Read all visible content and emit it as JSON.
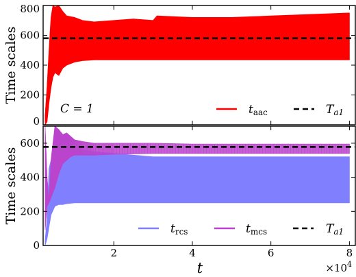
{
  "chart_data": [
    {
      "type": "line",
      "ylabel": "Time scales",
      "xlim": [
        2000,
        81500
      ],
      "ylim": [
        0,
        800
      ],
      "yticks": [
        0,
        200,
        400,
        600,
        800
      ],
      "annotation": "C = 1",
      "legend_position": "bottom-right",
      "hline": {
        "name": "T_a1",
        "label_main": "T",
        "label_sub": "a1",
        "value": 580,
        "color": "#000000",
        "style": "dashed"
      },
      "series": [
        {
          "name": "t_aac",
          "label_main": "t",
          "label_sub": "aac",
          "color": "#ff0000",
          "x": [
            2500,
            3000,
            3500,
            4000,
            4500,
            5000,
            6000,
            7000,
            8000,
            10000,
            12000,
            15000,
            20000,
            25000,
            30000,
            31000,
            40000,
            50000,
            60000,
            70000,
            80000
          ],
          "upper": [
            60,
            250,
            500,
            720,
            800,
            790,
            800,
            760,
            730,
            720,
            700,
            690,
            700,
            710,
            700,
            730,
            720,
            720,
            730,
            740,
            750
          ],
          "lower": [
            0,
            20,
            150,
            250,
            320,
            350,
            330,
            380,
            400,
            420,
            430,
            435,
            435,
            435,
            435,
            435,
            435,
            435,
            435,
            435,
            435
          ]
        }
      ]
    },
    {
      "type": "line",
      "ylabel": "Time scales",
      "xlabel": "t",
      "xlim": [
        2000,
        81500
      ],
      "ylim": [
        0,
        700
      ],
      "yticks": [
        0,
        200,
        400,
        600
      ],
      "xticks": [
        20000,
        40000,
        60000,
        80000
      ],
      "xtick_labels": [
        "2",
        "4",
        "6",
        "8"
      ],
      "x_multiplier": "×10",
      "x_multiplier_exp": "4",
      "legend_position": "bottom",
      "hline": {
        "name": "T_a1",
        "label_main": "T",
        "label_sub": "a1",
        "value": 578,
        "color": "#000000",
        "style": "dashed"
      },
      "series": [
        {
          "name": "t_rcs",
          "label_main": "t",
          "label_sub": "rcs",
          "color": "#8080ff",
          "x": [
            2500,
            3000,
            3500,
            4000,
            5000,
            6000,
            7000,
            8000,
            10000,
            12000,
            15000,
            20000,
            25000,
            30000,
            40000,
            50000,
            60000,
            70000,
            80000
          ],
          "upper": [
            30,
            150,
            450,
            500,
            520,
            560,
            560,
            560,
            560,
            560,
            550,
            540,
            530,
            520,
            520,
            520,
            520,
            520,
            520
          ],
          "lower": [
            0,
            40,
            110,
            180,
            230,
            240,
            240,
            245,
            250,
            250,
            250,
            250,
            250,
            250,
            250,
            250,
            250,
            250,
            250
          ]
        },
        {
          "name": "t_mcs",
          "label_main": "t",
          "label_sub": "mcs",
          "color": "#bb44cc",
          "x": [
            2500,
            3000,
            3500,
            4000,
            5000,
            6000,
            7000,
            8000,
            9000,
            10000,
            12000,
            15000,
            20000,
            30000,
            40000,
            50000,
            60000,
            70000,
            80000
          ],
          "upper": [
            700,
            400,
            260,
            500,
            700,
            680,
            650,
            660,
            640,
            620,
            610,
            600,
            600,
            600,
            595,
            595,
            595,
            595,
            595
          ],
          "lower": [
            90,
            230,
            250,
            280,
            340,
            420,
            480,
            500,
            520,
            530,
            530,
            530,
            535,
            540,
            540,
            540,
            540,
            540,
            540
          ]
        }
      ]
    }
  ]
}
